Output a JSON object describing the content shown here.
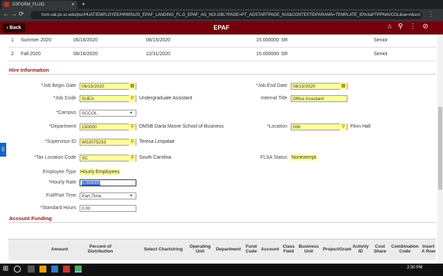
{
  "browser": {
    "tab_title": "G3FORM_FLUID",
    "url": "hcm-uat.ps.sc.edu/psc/HUAT/EMPLOYEE/HRMS/c/G_EPAF_LANDING_FL.G_EPAF_AG_NUI.GBL?PAGE=PT_AGSTARTPAGE_NUI&CONTEXTIDPARAMS=TEMPLATE_ID%3aPTPPNAVCOL&sa=n&scn"
  },
  "header": {
    "back": "Back",
    "title": "EPAF"
  },
  "terms": [
    [
      "1",
      "Summer 2020",
      "05/16/2020",
      "08/15/2020",
      "15.000000",
      "SR",
      "Senior"
    ],
    [
      "2",
      "Fall 2020",
      "08/16/2020",
      "12/31/2020",
      "15.000000",
      "SR",
      "Senior"
    ]
  ],
  "hire_information": {
    "title": "Hire Information",
    "job_begin_date": {
      "label": "*Job Begin Date",
      "value": "06/15/2020"
    },
    "job_end_date": {
      "label": "*Job End Date",
      "value": "08/15/2020"
    },
    "job_code": {
      "label": "*Job Code",
      "value": "SUEA",
      "description": "Undergraduate Assistant"
    },
    "internal_title": {
      "label": "Internal Title",
      "value": "Office Assistant"
    },
    "campus": {
      "label": "*Campus",
      "value": "SCCOL"
    },
    "department": {
      "label": "*Department",
      "value": "150000",
      "description": "DMSB Darla Moore School of Business"
    },
    "location": {
      "label": "*Location",
      "value": "006",
      "description": "Flinn Hall"
    },
    "supervisor_id": {
      "label": "*Supervisor ID",
      "value": "W53075233",
      "description": "Teresa Limpalair"
    },
    "tax_location_code": {
      "label": "*Tax Location Code",
      "value": "SC",
      "description": "South Carolina"
    },
    "flsa_status": {
      "label": "FLSA Status",
      "value": "Nonexempt"
    },
    "employee_type": {
      "label": "Employee Type",
      "value": "Hourly Employees"
    },
    "hourly_rate": {
      "label": "*Hourly Rate",
      "value": "0.000000"
    },
    "full_part_time": {
      "label": "Full/Part Time",
      "value": "Part-Time"
    },
    "standard_hours": {
      "label": "*Standard Hours",
      "value": "0.00"
    }
  },
  "account_funding": {
    "title": "Account Funding",
    "columns": [
      "Amount",
      "Percent of Distribution",
      "Select Chartstring",
      "Operating Unit",
      "Department",
      "Fund Code",
      "Account",
      "Class Field",
      "Business Unit",
      "Project/Grant",
      "Activity ID",
      "Cost Share",
      "Combination Code",
      "Insert A Row"
    ]
  },
  "taskbar": {
    "time": "2:30 PM"
  }
}
